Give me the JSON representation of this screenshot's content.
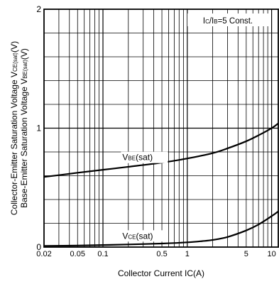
{
  "chart_data": {
    "type": "line",
    "x_scale": "log",
    "y_scale": "linear",
    "xlim": [
      0.02,
      12
    ],
    "ylim": [
      0,
      2
    ],
    "grid": true,
    "x_ticks": [
      {
        "value": 0.02,
        "label": "0.02"
      },
      {
        "value": 0.05,
        "label": "0.05"
      },
      {
        "value": 0.1,
        "label": "0.1"
      },
      {
        "value": 0.5,
        "label": "0.5"
      },
      {
        "value": 1,
        "label": "1"
      },
      {
        "value": 5,
        "label": "5"
      },
      {
        "value": 10,
        "label": "10"
      }
    ],
    "y_ticks": [
      {
        "value": 0,
        "label": "0"
      },
      {
        "value": 1,
        "label": "1"
      },
      {
        "value": 2,
        "label": "2"
      }
    ],
    "y_gridlines": [
      0.2,
      0.4,
      0.6,
      0.8,
      1.0,
      1.2,
      1.4,
      1.6,
      1.8
    ],
    "xlabel": {
      "main": "Collector Current I",
      "sub": "C",
      "suffix": "(A)"
    },
    "ylabel_line1": {
      "main": "Collector-Emitter Saturation Voltage V",
      "sub": "CE(sat)",
      "suffix": "(V)"
    },
    "ylabel_line2": {
      "main": "Base-Emitter Saturation Voltage V",
      "sub": "BE(sat)",
      "suffix": "(V)"
    },
    "condition": {
      "p1": "I",
      "s1": "C",
      "p2": "/I",
      "s2": "B",
      "p3": "=5 Const."
    },
    "series": [
      {
        "name": {
          "main": "V",
          "sub": "BE",
          "suffix": "(sat)"
        },
        "label_at": {
          "x": 0.17,
          "y": 0.73
        },
        "x": [
          0.02,
          0.03,
          0.05,
          0.1,
          0.2,
          0.5,
          1,
          2,
          3,
          5,
          7,
          10,
          12
        ],
        "y": [
          0.59,
          0.605,
          0.625,
          0.65,
          0.675,
          0.71,
          0.745,
          0.79,
          0.83,
          0.89,
          0.94,
          1.0,
          1.04
        ]
      },
      {
        "name": {
          "main": "V",
          "sub": "CE",
          "suffix": "(sat)"
        },
        "label_at": {
          "x": 0.17,
          "y": 0.07
        },
        "x": [
          0.02,
          0.05,
          0.1,
          0.2,
          0.5,
          1,
          1.5,
          2,
          3,
          5,
          7,
          10,
          12
        ],
        "y": [
          0.01,
          0.013,
          0.017,
          0.022,
          0.03,
          0.04,
          0.05,
          0.06,
          0.085,
          0.14,
          0.19,
          0.26,
          0.3
        ]
      }
    ]
  }
}
